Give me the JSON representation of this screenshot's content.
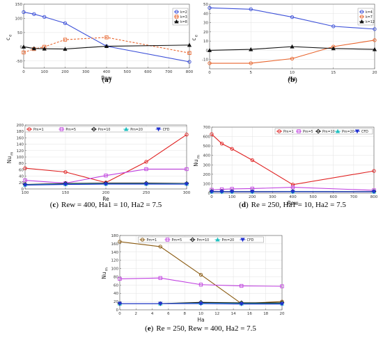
{
  "chart_data": [
    {
      "type": "line",
      "panel": "a",
      "caption_letter": "a",
      "caption_text": "",
      "xlabel": "Rew",
      "ylabel": "c",
      "ylabel_sub": "e",
      "xlim": [
        0,
        800
      ],
      "ylim": [
        -75,
        150
      ],
      "xticks": [
        0,
        100,
        200,
        300,
        400,
        500,
        600,
        700,
        800
      ],
      "yticks": [
        -50,
        0,
        50,
        100,
        150
      ],
      "grid": true,
      "legend_position": "top-right",
      "series": [
        {
          "name": "k=2",
          "color": "#3b4fd8",
          "dash": "",
          "marker": "circle",
          "x": [
            0,
            50,
            100,
            200,
            400,
            800
          ],
          "y": [
            122,
            115,
            105,
            83,
            2,
            -53
          ]
        },
        {
          "name": "k=3",
          "color": "#e8642c",
          "dash": "3,2",
          "marker": "square",
          "x": [
            0,
            50,
            100,
            200,
            400,
            800
          ],
          "y": [
            -20,
            -8,
            0,
            25,
            33,
            -22
          ]
        },
        {
          "name": "k=8",
          "color": "#111111",
          "dash": "",
          "marker": "triangle",
          "x": [
            0,
            50,
            100,
            200,
            400,
            800
          ],
          "y": [
            0,
            -6,
            -7,
            -8,
            2,
            6
          ]
        }
      ]
    },
    {
      "type": "line",
      "panel": "b",
      "caption_letter": "b",
      "caption_text": "",
      "xlabel": "Ha",
      "ylabel": "c",
      "ylabel_sub": "e",
      "xlim": [
        0,
        20
      ],
      "ylim": [
        -20,
        50
      ],
      "xticks": [
        0,
        5,
        10,
        15,
        20
      ],
      "yticks": [
        -10,
        0,
        10,
        20,
        30,
        40,
        50
      ],
      "grid": true,
      "legend_position": "top-right",
      "series": [
        {
          "name": "k=4",
          "color": "#3b4fd8",
          "dash": "",
          "marker": "circle",
          "x": [
            0,
            5,
            10,
            15,
            20
          ],
          "y": [
            46,
            44.5,
            36,
            26,
            23
          ]
        },
        {
          "name": "k=7",
          "color": "#e8642c",
          "dash": "",
          "marker": "circle",
          "x": [
            0,
            5,
            10,
            15,
            20
          ],
          "y": [
            -14,
            -14,
            -9,
            4,
            11
          ]
        },
        {
          "name": "k=12",
          "color": "#111111",
          "dash": "",
          "marker": "triangle",
          "x": [
            0,
            5,
            10,
            15,
            20
          ],
          "y": [
            0,
            1,
            4,
            2,
            1
          ]
        }
      ]
    },
    {
      "type": "line",
      "panel": "c",
      "caption_letter": "c",
      "caption_text": "Rew = 400, Ha1 = 10, Ha2 = 7.5",
      "xlabel": "Re",
      "ylabel": "Nu",
      "ylabel_sub": "m",
      "xlim": [
        100,
        300
      ],
      "ylim": [
        0,
        200
      ],
      "xticks": [
        100,
        150,
        200,
        250,
        300
      ],
      "yticks": [
        0,
        20,
        40,
        60,
        80,
        100,
        120,
        140,
        160,
        180,
        200
      ],
      "grid": true,
      "legend_position": "top",
      "series": [
        {
          "name": "Pm=1",
          "color": "#e02020",
          "dash": "",
          "marker": "circle",
          "x": [
            100,
            150,
            200,
            250,
            300
          ],
          "y": [
            65,
            53,
            20,
            85,
            170
          ]
        },
        {
          "name": "Pm=5",
          "color": "#c040e0",
          "dash": "",
          "marker": "square",
          "x": [
            100,
            150,
            200,
            250,
            300
          ],
          "y": [
            27,
            18,
            42,
            62,
            62
          ]
        },
        {
          "name": "Pm=10",
          "color": "#111111",
          "dash": "",
          "marker": "diamond",
          "x": [
            100,
            150,
            200,
            250,
            300
          ],
          "y": [
            14,
            17,
            18,
            18,
            17
          ]
        },
        {
          "name": "Pm=20",
          "color": "#20c0c0",
          "dash": "",
          "marker": "triangle",
          "x": [
            100,
            150,
            200,
            250,
            300
          ],
          "y": [
            13,
            15,
            16,
            16,
            16
          ]
        },
        {
          "name": "CFD",
          "color": "#2030d0",
          "dash": "",
          "marker": "triangle-down",
          "x": [
            100,
            150,
            200,
            250,
            300
          ],
          "y": [
            12,
            14,
            15,
            15,
            15
          ]
        }
      ]
    },
    {
      "type": "line",
      "panel": "d",
      "caption_letter": "d",
      "caption_text": "Re = 250, Ha1 = 10, Ha2 = 7.5",
      "xlabel": "Rew",
      "ylabel": "Nu",
      "ylabel_sub": "m",
      "xlim": [
        0,
        800
      ],
      "ylim": [
        0,
        700
      ],
      "xticks": [
        0,
        100,
        200,
        300,
        400,
        500,
        600,
        700,
        800
      ],
      "yticks": [
        0,
        100,
        200,
        300,
        400,
        500,
        600,
        700
      ],
      "grid": true,
      "legend_position": "top",
      "series": [
        {
          "name": "Pm=1",
          "color": "#e02020",
          "dash": "",
          "marker": "circle",
          "x": [
            0,
            50,
            100,
            200,
            400,
            800
          ],
          "y": [
            625,
            525,
            470,
            350,
            90,
            235
          ]
        },
        {
          "name": "Pm=5",
          "color": "#c040e0",
          "dash": "",
          "marker": "square",
          "x": [
            0,
            50,
            100,
            200,
            400,
            800
          ],
          "y": [
            35,
            40,
            45,
            48,
            62,
            30
          ]
        },
        {
          "name": "Pm=10",
          "color": "#111111",
          "dash": "",
          "marker": "diamond",
          "x": [
            0,
            50,
            100,
            200,
            400,
            800
          ],
          "y": [
            18,
            17,
            17,
            17,
            18,
            17
          ]
        },
        {
          "name": "Pm=20",
          "color": "#20c0c0",
          "dash": "",
          "marker": "triangle",
          "x": [
            0,
            50,
            100,
            200,
            400,
            800
          ],
          "y": [
            15,
            15,
            15,
            15,
            16,
            15
          ]
        },
        {
          "name": "CFD",
          "color": "#2030d0",
          "dash": "",
          "marker": "triangle-down",
          "x": [
            0,
            50,
            100,
            200,
            400,
            800
          ],
          "y": [
            14,
            14,
            14,
            14,
            15,
            14
          ]
        }
      ]
    },
    {
      "type": "line",
      "panel": "e",
      "caption_letter": "e",
      "caption_text": "Re = 250, Rew = 400, Ha2 = 7.5",
      "xlabel": "Ha",
      "ylabel": "Nu",
      "ylabel_sub": "m",
      "xlim": [
        0,
        20
      ],
      "ylim": [
        0,
        180
      ],
      "xticks": [
        0,
        2,
        4,
        6,
        8,
        10,
        12,
        14,
        16,
        18,
        20
      ],
      "yticks": [
        0,
        20,
        40,
        60,
        80,
        100,
        120,
        140,
        160,
        180
      ],
      "grid": true,
      "legend_position": "top",
      "series": [
        {
          "name": "Pm=1",
          "color": "#8a5a10",
          "dash": "",
          "marker": "circle",
          "x": [
            0,
            5,
            10,
            15,
            20
          ],
          "y": [
            165,
            153,
            85,
            15,
            20
          ]
        },
        {
          "name": "Pm=5",
          "color": "#c040e0",
          "dash": "",
          "marker": "square",
          "x": [
            0,
            5,
            10,
            15,
            20
          ],
          "y": [
            75,
            77,
            61,
            58,
            57
          ]
        },
        {
          "name": "Pm=10",
          "color": "#111111",
          "dash": "",
          "marker": "diamond",
          "x": [
            0,
            5,
            10,
            15,
            20
          ],
          "y": [
            15,
            15,
            18,
            17,
            17
          ]
        },
        {
          "name": "Pm=20",
          "color": "#20c0c0",
          "dash": "",
          "marker": "triangle",
          "x": [
            0,
            5,
            10,
            15,
            20
          ],
          "y": [
            15,
            15,
            16,
            15,
            15
          ]
        },
        {
          "name": "CFD",
          "color": "#2030d0",
          "dash": "",
          "marker": "triangle-down",
          "x": [
            0,
            5,
            10,
            15,
            20
          ],
          "y": [
            15,
            15,
            15,
            14,
            14
          ]
        }
      ]
    }
  ]
}
